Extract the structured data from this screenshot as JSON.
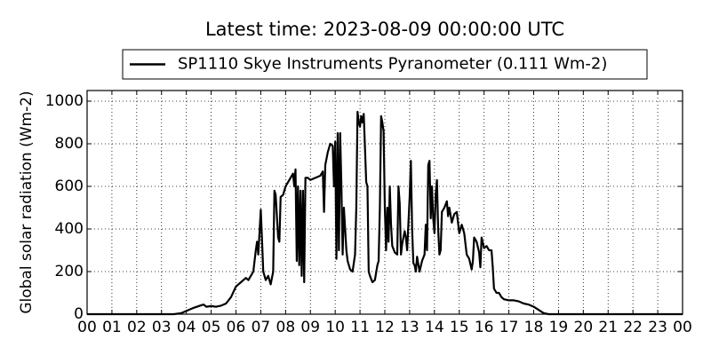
{
  "chart_data": {
    "type": "line",
    "title": "Latest time: 2023-08-09 00:00:00 UTC",
    "ylabel": "Global solar radiation (Wm-2)",
    "legend": "upper center",
    "grid": true,
    "xlim": [
      0,
      24
    ],
    "ylim": [
      0,
      1050
    ],
    "yticks": [
      0,
      200,
      400,
      600,
      800,
      1000
    ],
    "xticks": [
      {
        "value": 0,
        "label": "00"
      },
      {
        "value": 1,
        "label": "01"
      },
      {
        "value": 2,
        "label": "02"
      },
      {
        "value": 3,
        "label": "03"
      },
      {
        "value": 4,
        "label": "04"
      },
      {
        "value": 5,
        "label": "05"
      },
      {
        "value": 6,
        "label": "06"
      },
      {
        "value": 7,
        "label": "07"
      },
      {
        "value": 8,
        "label": "08"
      },
      {
        "value": 9,
        "label": "09"
      },
      {
        "value": 10,
        "label": "10"
      },
      {
        "value": 11,
        "label": "11"
      },
      {
        "value": 12,
        "label": "12"
      },
      {
        "value": 13,
        "label": "13"
      },
      {
        "value": 14,
        "label": "14"
      },
      {
        "value": 15,
        "label": "15"
      },
      {
        "value": 16,
        "label": "16"
      },
      {
        "value": 17,
        "label": "17"
      },
      {
        "value": 18,
        "label": "18"
      },
      {
        "value": 19,
        "label": "19"
      },
      {
        "value": 20,
        "label": "20"
      },
      {
        "value": 21,
        "label": "21"
      },
      {
        "value": 22,
        "label": "22"
      },
      {
        "value": 23,
        "label": "23"
      },
      {
        "value": 24,
        "label": "00"
      }
    ],
    "x": [
      0,
      3.5,
      3.8,
      4.0,
      4.3,
      4.6,
      4.7,
      4.8,
      5.0,
      5.2,
      5.4,
      5.6,
      5.8,
      6.0,
      6.2,
      6.3,
      6.4,
      6.5,
      6.6,
      6.7,
      6.8,
      6.85,
      6.9,
      7.0,
      7.05,
      7.1,
      7.2,
      7.3,
      7.4,
      7.5,
      7.55,
      7.6,
      7.7,
      7.75,
      7.8,
      7.9,
      8.0,
      8.1,
      8.2,
      8.3,
      8.35,
      8.4,
      8.45,
      8.5,
      8.55,
      8.6,
      8.65,
      8.7,
      8.75,
      8.8,
      8.9,
      9.0,
      9.2,
      9.4,
      9.5,
      9.55,
      9.6,
      9.7,
      9.8,
      9.9,
      9.95,
      10.0,
      10.05,
      10.1,
      10.15,
      10.2,
      10.25,
      10.3,
      10.35,
      10.4,
      10.45,
      10.5,
      10.6,
      10.7,
      10.8,
      10.85,
      10.9,
      10.95,
      11.0,
      11.05,
      11.1,
      11.15,
      11.2,
      11.25,
      11.3,
      11.35,
      11.4,
      11.5,
      11.6,
      11.7,
      11.75,
      11.8,
      11.85,
      11.9,
      11.95,
      12.0,
      12.05,
      12.1,
      12.15,
      12.2,
      12.25,
      12.3,
      12.4,
      12.5,
      12.55,
      12.6,
      12.65,
      12.7,
      12.8,
      12.85,
      12.9,
      13.0,
      13.05,
      13.1,
      13.15,
      13.2,
      13.25,
      13.3,
      13.4,
      13.5,
      13.6,
      13.65,
      13.7,
      13.75,
      13.8,
      13.85,
      13.9,
      13.95,
      14.0,
      14.05,
      14.1,
      14.15,
      14.2,
      14.25,
      14.3,
      14.4,
      14.5,
      14.55,
      14.6,
      14.7,
      14.8,
      14.9,
      15.0,
      15.1,
      15.2,
      15.3,
      15.4,
      15.5,
      15.55,
      15.6,
      15.7,
      15.8,
      15.85,
      15.9,
      16.0,
      16.1,
      16.2,
      16.3,
      16.35,
      16.4,
      16.5,
      16.6,
      16.7,
      16.8,
      17.0,
      17.2,
      17.4,
      17.6,
      17.8,
      18.0,
      18.2,
      18.4,
      18.6,
      24
    ],
    "series": [
      {
        "name": "SP1110 Skye Instruments Pyranometer (0.111 Wm-2)",
        "color": "#000000",
        "values": [
          0,
          0,
          5,
          15,
          30,
          42,
          45,
          35,
          38,
          35,
          40,
          50,
          80,
          130,
          150,
          160,
          170,
          160,
          180,
          200,
          300,
          340,
          280,
          490,
          350,
          200,
          160,
          180,
          140,
          200,
          580,
          560,
          360,
          340,
          550,
          560,
          600,
          620,
          640,
          660,
          600,
          680,
          250,
          600,
          230,
          580,
          180,
          580,
          150,
          640,
          640,
          630,
          640,
          650,
          670,
          480,
          700,
          760,
          800,
          790,
          600,
          810,
          260,
          850,
          300,
          850,
          600,
          280,
          500,
          400,
          300,
          250,
          210,
          200,
          280,
          500,
          950,
          900,
          880,
          930,
          900,
          940,
          780,
          620,
          600,
          200,
          180,
          150,
          160,
          230,
          250,
          500,
          930,
          900,
          860,
          500,
          300,
          500,
          340,
          600,
          420,
          320,
          290,
          280,
          600,
          520,
          280,
          330,
          390,
          360,
          300,
          550,
          720,
          400,
          240,
          230,
          200,
          270,
          200,
          250,
          280,
          420,
          300,
          700,
          720,
          450,
          600,
          450,
          380,
          560,
          630,
          400,
          280,
          300,
          480,
          500,
          530,
          460,
          500,
          430,
          470,
          480,
          380,
          420,
          380,
          280,
          260,
          210,
          250,
          360,
          340,
          290,
          220,
          360,
          310,
          320,
          300,
          300,
          220,
          120,
          100,
          100,
          80,
          70,
          65,
          65,
          60,
          50,
          45,
          35,
          20,
          5,
          0,
          0
        ]
      }
    ]
  }
}
